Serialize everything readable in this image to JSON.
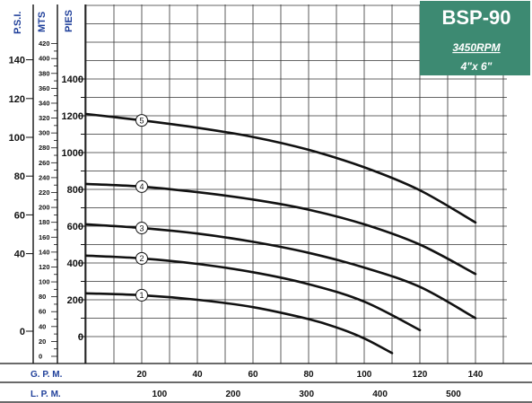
{
  "chart_data": {
    "type": "line",
    "title": "BSP-90",
    "rpm": "3450RPM",
    "size": "4\"x 6\"",
    "axes": {
      "psi": {
        "label": "P.S.I.",
        "ticks": [
          "140",
          "120",
          "100",
          "80",
          "60",
          "40",
          "0"
        ],
        "values": [
          140,
          120,
          100,
          80,
          60,
          40,
          0
        ]
      },
      "mts": {
        "label": "MTS",
        "ticks": [
          "420",
          "400",
          "380",
          "360",
          "340",
          "320",
          "300",
          "280",
          "260",
          "240",
          "220",
          "200",
          "180",
          "160",
          "140",
          "120",
          "100",
          "80",
          "60",
          "40",
          "20",
          "0"
        ],
        "range": [
          0,
          420
        ]
      },
      "pies": {
        "label": "PIES",
        "ticks": [
          "1400",
          "1200",
          "1000",
          "800",
          "600",
          "400",
          "200",
          "0"
        ],
        "values": [
          1400,
          1200,
          1000,
          800,
          600,
          400,
          200,
          0
        ]
      },
      "gpm": {
        "label": "G. P. M.",
        "ticks": [
          "20",
          "40",
          "60",
          "80",
          "100",
          "120",
          "140"
        ],
        "values": [
          20,
          40,
          60,
          80,
          100,
          120,
          140
        ]
      },
      "lpm": {
        "label": "L. P. M.",
        "ticks": [
          "100",
          "200",
          "300",
          "400",
          "500"
        ],
        "values": [
          100,
          200,
          300,
          400,
          500
        ]
      }
    },
    "x_unit": "gpm",
    "y_unit": "pies",
    "series": [
      {
        "label": "1",
        "x": [
          0,
          20,
          40,
          60,
          80,
          90,
          100,
          110
        ],
        "y": [
          235,
          225,
          200,
          160,
          95,
          50,
          -10,
          -90
        ]
      },
      {
        "label": "2",
        "x": [
          0,
          20,
          40,
          60,
          80,
          100,
          120
        ],
        "y": [
          440,
          425,
          395,
          350,
          285,
          190,
          35
        ]
      },
      {
        "label": "3",
        "x": [
          0,
          20,
          40,
          60,
          80,
          100,
          120,
          140
        ],
        "y": [
          610,
          590,
          560,
          515,
          455,
          375,
          270,
          100
        ]
      },
      {
        "label": "4",
        "x": [
          0,
          20,
          40,
          60,
          80,
          100,
          120,
          140
        ],
        "y": [
          830,
          815,
          785,
          745,
          690,
          610,
          500,
          340
        ]
      },
      {
        "label": "5",
        "x": [
          0,
          20,
          40,
          60,
          80,
          100,
          120,
          140
        ],
        "y": [
          1210,
          1175,
          1135,
          1085,
          1015,
          920,
          795,
          620
        ]
      }
    ],
    "label_position_gpm": 20,
    "grid": true
  },
  "colors": {
    "brand_box": "#3d8a72",
    "axis_title": "#1f3f9a",
    "curve": "#111111",
    "grid": "#222222"
  }
}
